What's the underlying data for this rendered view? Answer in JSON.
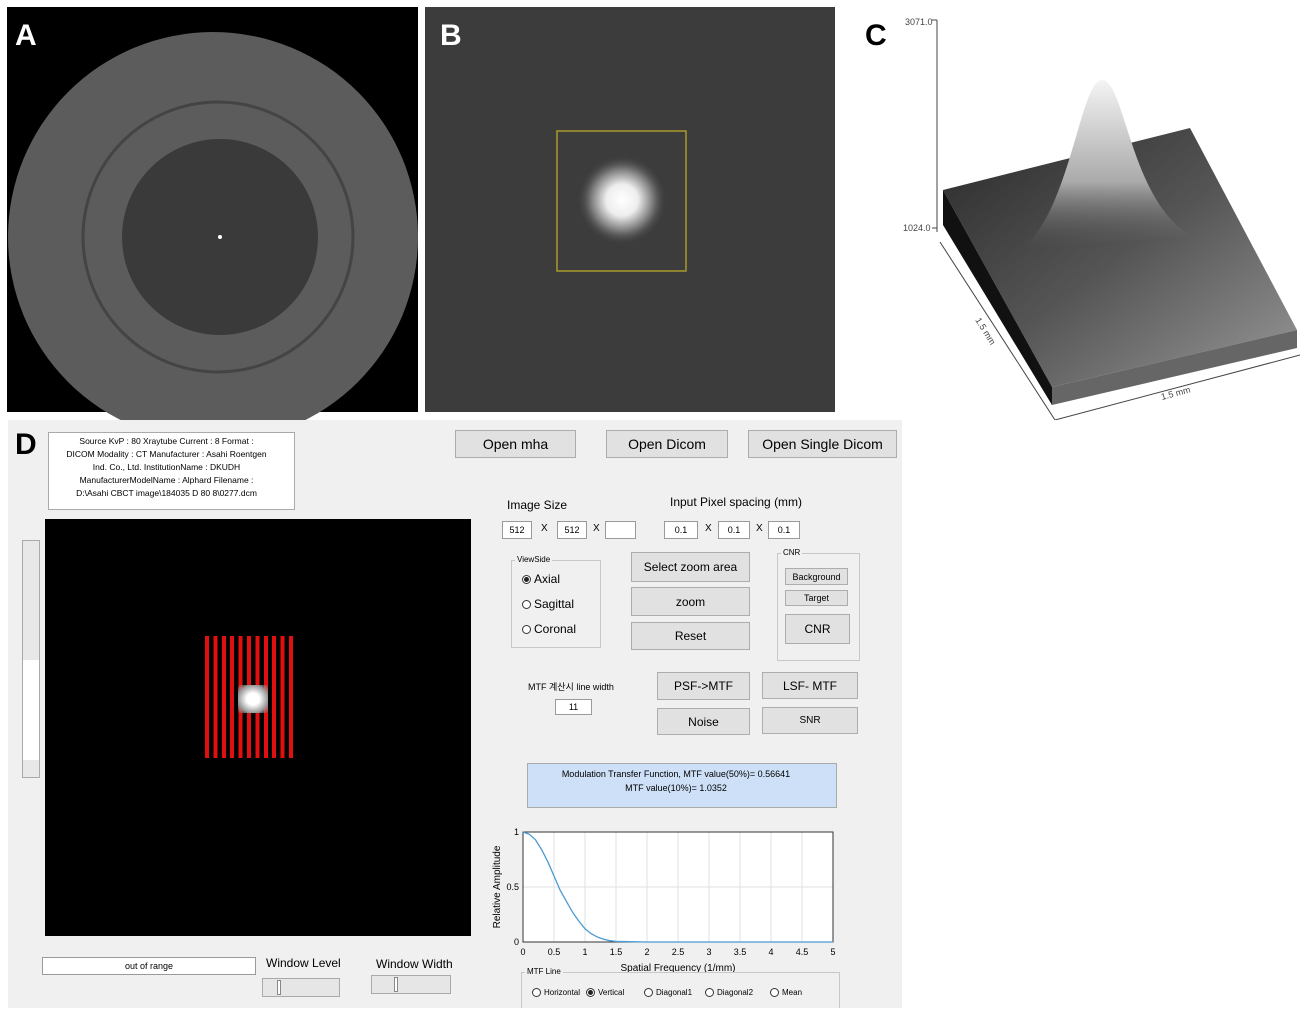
{
  "panel_labels": [
    "A",
    "B",
    "C",
    "D"
  ],
  "surface_plot": {
    "z_max_label": "3071.0",
    "z_min_label": "1024.0",
    "depth_label": "1.5 mm",
    "width_label": "1.5 mm"
  },
  "toolbar": [
    "Open mha",
    "Open Dicom",
    "Open Single Dicom"
  ],
  "info_lines": [
    "Source KvP : 80   Xraytube Current : 8    Format :",
    "DICOM    Modality : CT    Manufacturer : Asahi Roentgen",
    "Ind. Co., Ltd.    InstitutionName : DKUDH",
    "ManufacturerModelName : Alphard    Filename :",
    "D:\\Asahi CBCT image\\184035 D 80 8\\0277.dcm"
  ],
  "image_size": {
    "label": "Image Size",
    "width": 512,
    "height": 512,
    "separator": "X"
  },
  "pixel_spacing": {
    "label": "Input Pixel spacing (mm)",
    "values": [
      0.1,
      0.1,
      0.1
    ]
  },
  "view_side": {
    "title": "ViewSide",
    "options": [
      "Axial",
      "Sagittal",
      "Coronal"
    ],
    "selected": 0
  },
  "zoom_buttons": [
    "Select zoom area",
    "zoom",
    "Reset"
  ],
  "cnr": {
    "title": "CNR",
    "buttons": [
      "Background",
      "Target",
      "CNR"
    ]
  },
  "mtf_line_width": {
    "label": "MTF 계산시 line width",
    "value": 11
  },
  "analysis_buttons": [
    "PSF->MTF",
    "LSF- MTF",
    "Noise",
    "SNR"
  ],
  "mtf_result": [
    "Modulation Transfer Function,    MTF value(50%)= 0.56641",
    "MTF value(10%)= 1.0352"
  ],
  "mtf_plot": {
    "type": "line",
    "x_label": "Spatial Frequency (1/mm)",
    "y_label": "Relative Amplitude",
    "x": [
      0,
      0.1,
      0.2,
      0.3,
      0.4,
      0.5,
      0.6,
      0.7,
      0.8,
      0.9,
      1.0,
      1.1,
      1.2,
      1.3,
      1.4,
      1.5,
      2,
      3,
      4,
      5
    ],
    "values": [
      1,
      0.98,
      0.93,
      0.84,
      0.73,
      0.6,
      0.47,
      0.37,
      0.27,
      0.19,
      0.12,
      0.075,
      0.045,
      0.025,
      0.012,
      0.005,
      0,
      0,
      0,
      0
    ],
    "color": "#4a9bd4",
    "xlim": [
      0,
      5
    ],
    "ylim": [
      0,
      1
    ],
    "xticks": [
      0,
      0.5,
      1,
      1.5,
      2,
      2.5,
      3,
      3.5,
      4,
      4.5,
      5
    ],
    "yticks": [
      0,
      0.5,
      1
    ],
    "grid": true
  },
  "mtf_line": {
    "title": "MTF Line",
    "options": [
      "Horizontal",
      "Vertical",
      "Diagonal1",
      "Diagonal2",
      "Mean"
    ],
    "selected": 1
  },
  "status": "out of range",
  "window_level": "Window Level",
  "window_width": "Window Width"
}
